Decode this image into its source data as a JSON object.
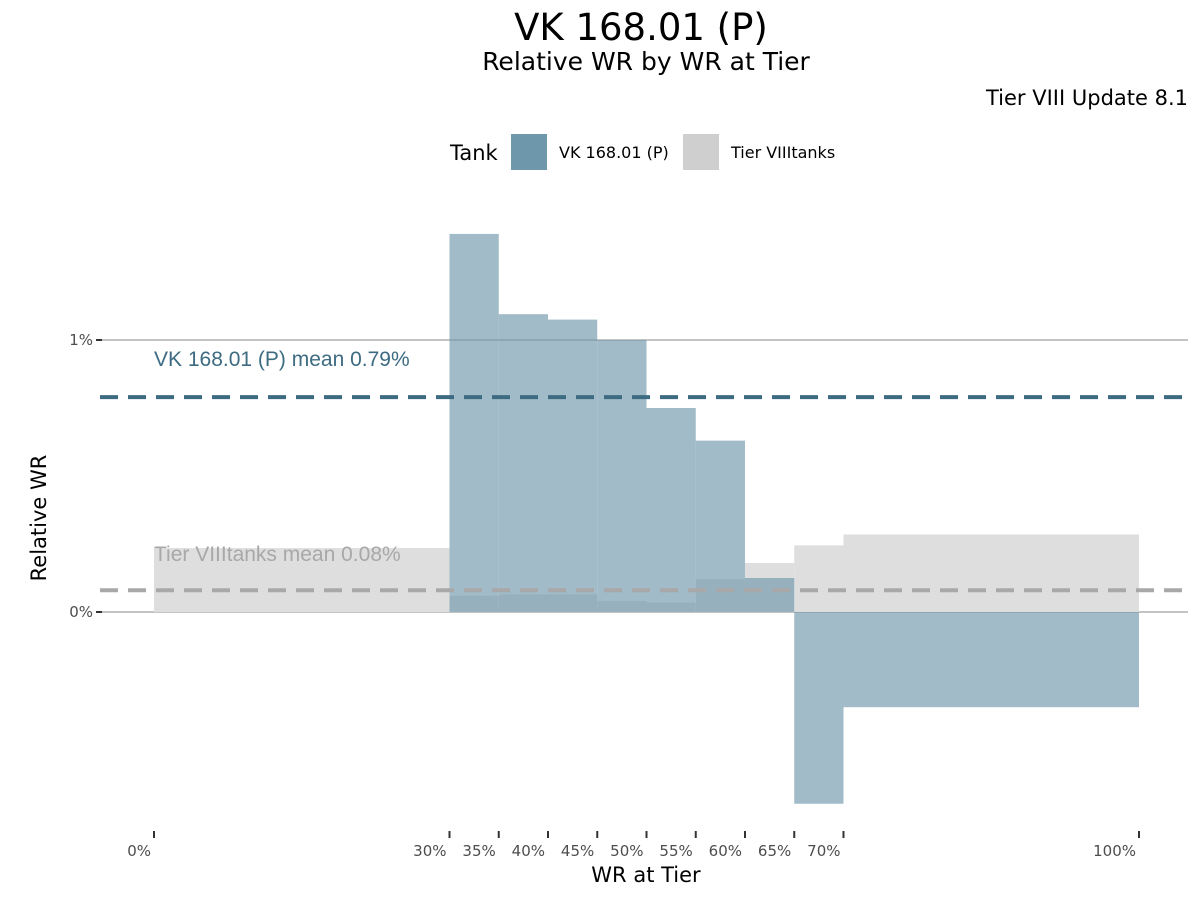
{
  "chart_data": {
    "type": "bar",
    "title": "VK 168.01 (P)",
    "subtitle": "Relative WR by WR at Tier",
    "caption": "Tier VIII Update 8.1",
    "xlabel": "WR at Tier",
    "ylabel": "Relative WR",
    "xlim": [
      0,
      1
    ],
    "ylim": [
      -0.0078,
      0.0142
    ],
    "x_ticks": [
      {
        "value": 0,
        "label": "0%"
      },
      {
        "value": 0.3,
        "label": "30%"
      },
      {
        "value": 0.35,
        "label": "35%"
      },
      {
        "value": 0.4,
        "label": "40%"
      },
      {
        "value": 0.45,
        "label": "45%"
      },
      {
        "value": 0.5,
        "label": "50%"
      },
      {
        "value": 0.55,
        "label": "55%"
      },
      {
        "value": 0.6,
        "label": "60%"
      },
      {
        "value": 0.65,
        "label": "65%"
      },
      {
        "value": 0.7,
        "label": "70%"
      },
      {
        "value": 1.0,
        "label": "100%"
      }
    ],
    "y_ticks": [
      {
        "value": 0,
        "label": "0%"
      },
      {
        "value": 0.01,
        "label": "1%"
      }
    ],
    "legend": {
      "title": "Tank",
      "position": "top",
      "entries": [
        {
          "label": "VK 168.01 (P)",
          "color": "#6f97ab"
        },
        {
          "label": "Tier VIIItanks",
          "color": "#cfcfcf"
        }
      ]
    },
    "series": [
      {
        "name": "Tier VIIItanks",
        "color": "#dedede",
        "opacity": 1,
        "bins": [
          {
            "x0": 0.0,
            "x1": 0.3,
            "value": 0.00235
          },
          {
            "x0": 0.3,
            "x1": 0.35,
            "value": 0.0006
          },
          {
            "x0": 0.35,
            "x1": 0.4,
            "value": 0.00065
          },
          {
            "x0": 0.4,
            "x1": 0.45,
            "value": 0.00065
          },
          {
            "x0": 0.45,
            "x1": 0.5,
            "value": 0.0004
          },
          {
            "x0": 0.5,
            "x1": 0.55,
            "value": 0.00035
          },
          {
            "x0": 0.55,
            "x1": 0.6,
            "value": 0.0012
          },
          {
            "x0": 0.6,
            "x1": 0.65,
            "value": 0.0018
          },
          {
            "x0": 0.65,
            "x1": 0.7,
            "value": 0.00245
          },
          {
            "x0": 0.7,
            "x1": 1.0,
            "value": 0.00285
          }
        ]
      },
      {
        "name": "VK 168.01 (P)",
        "color": "#6f97ab",
        "opacity": 0.65,
        "bins": [
          {
            "x0": 0.3,
            "x1": 0.35,
            "value": 0.0139
          },
          {
            "x0": 0.35,
            "x1": 0.4,
            "value": 0.01095
          },
          {
            "x0": 0.4,
            "x1": 0.45,
            "value": 0.01075
          },
          {
            "x0": 0.45,
            "x1": 0.5,
            "value": 0.01
          },
          {
            "x0": 0.5,
            "x1": 0.55,
            "value": 0.0075
          },
          {
            "x0": 0.55,
            "x1": 0.6,
            "value": 0.0063
          },
          {
            "x0": 0.6,
            "x1": 0.65,
            "value": 0.00125
          },
          {
            "x0": 0.65,
            "x1": 0.7,
            "value": -0.00705
          },
          {
            "x0": 0.7,
            "x1": 1.0,
            "value": -0.0035
          }
        ]
      }
    ],
    "mean_lines": [
      {
        "label": "VK 168.01 (P) mean 0.79%",
        "value": 0.0079,
        "color": "#3d6b82"
      },
      {
        "label": "Tier VIIItanks mean 0.08%",
        "value": 0.0008,
        "color": "#a8a8a8"
      }
    ]
  }
}
